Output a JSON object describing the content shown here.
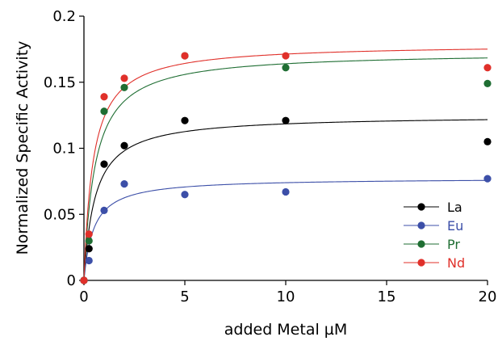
{
  "chart_data": {
    "type": "scatter",
    "title": "",
    "xlabel": "added Metal µM",
    "ylabel": "Normalized Specific Activity",
    "xlim": [
      0,
      20
    ],
    "ylim": [
      0,
      0.2
    ],
    "xticks": [
      0,
      5,
      10,
      15,
      20
    ],
    "xtick_labels": [
      "0",
      "5",
      "10",
      "15",
      "20"
    ],
    "yticks": [
      0,
      0.05,
      0.1,
      0.15,
      0.2
    ],
    "ytick_labels": [
      "0",
      "0.05",
      "0.1",
      "0.15",
      "0.2"
    ],
    "grid": false,
    "legend_position": "bottom-right",
    "series": [
      {
        "name": "La",
        "color": "#000000",
        "x": [
          0,
          0.25,
          1,
          2,
          5,
          10,
          20
        ],
        "y": [
          0,
          0.024,
          0.088,
          0.102,
          0.121,
          0.121,
          0.105
        ],
        "fit": {
          "vmax": 0.125,
          "km": 0.55
        }
      },
      {
        "name": "Eu",
        "color": "#3c4fa8",
        "x": [
          0,
          0.25,
          1,
          2,
          5,
          10,
          20
        ],
        "y": [
          0,
          0.015,
          0.053,
          0.073,
          0.065,
          0.067,
          0.077
        ],
        "fit": {
          "vmax": 0.0775,
          "km": 0.48
        }
      },
      {
        "name": "Pr",
        "color": "#1f6e33",
        "x": [
          0,
          0.25,
          1,
          2,
          5,
          10,
          20
        ],
        "y": [
          0,
          0.03,
          0.128,
          0.146,
          0.17,
          0.161,
          0.149
        ],
        "fit": {
          "vmax": 0.173,
          "km": 0.55
        }
      },
      {
        "name": "Nd",
        "color": "#e0302a",
        "x": [
          0,
          0.25,
          1,
          2,
          5,
          10,
          20
        ],
        "y": [
          0,
          0.035,
          0.139,
          0.153,
          0.17,
          0.17,
          0.161
        ],
        "fit": {
          "vmax": 0.179,
          "km": 0.45
        }
      }
    ]
  }
}
